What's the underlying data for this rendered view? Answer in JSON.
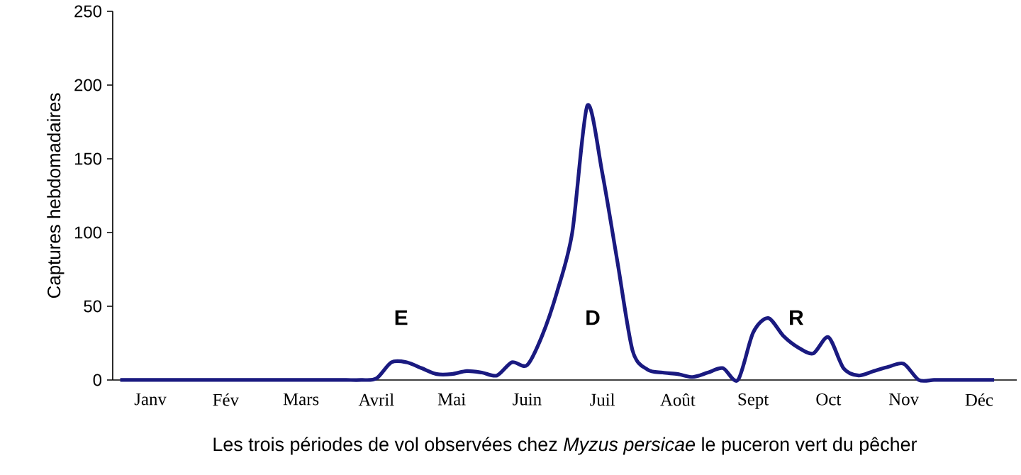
{
  "chart_data": {
    "type": "line",
    "xlabel": "Les trois périodes de vol observées chez *Myzus persicae* le puceron vert du pêcher",
    "ylabel": "Captures hebdomadaires",
    "ylim": [
      0,
      250
    ],
    "yticks": [
      0,
      50,
      100,
      150,
      200,
      250
    ],
    "categories": [
      null,
      null,
      "Janv",
      null,
      null,
      null,
      null,
      "Fév",
      null,
      null,
      null,
      null,
      "Mars",
      null,
      null,
      null,
      null,
      "Avril",
      null,
      null,
      null,
      null,
      "Mai",
      null,
      null,
      null,
      null,
      "Juin",
      null,
      null,
      null,
      null,
      "Juil",
      null,
      null,
      null,
      null,
      "Août",
      null,
      null,
      null,
      null,
      "Sept",
      null,
      null,
      null,
      null,
      "Oct",
      null,
      null,
      null,
      null,
      "Nov",
      null,
      null,
      null,
      null,
      "Déc",
      null,
      null
    ],
    "series": [
      {
        "color": "#1a1a80",
        "values": [
          0,
          0,
          0,
          0,
          0,
          0,
          0,
          0,
          0,
          0,
          0,
          0,
          0,
          0,
          0,
          0,
          0,
          1,
          12,
          12,
          8,
          4,
          4,
          6,
          5,
          3,
          12,
          10,
          30,
          60,
          100,
          186,
          140,
          80,
          20,
          7,
          5,
          4,
          2,
          5,
          8,
          0,
          32,
          42,
          30,
          22,
          18,
          29,
          8,
          3,
          6,
          9,
          11,
          0,
          0,
          0,
          0,
          0,
          0,
          null
        ]
      }
    ],
    "annotations": [
      "E",
      "D",
      "R"
    ]
  }
}
